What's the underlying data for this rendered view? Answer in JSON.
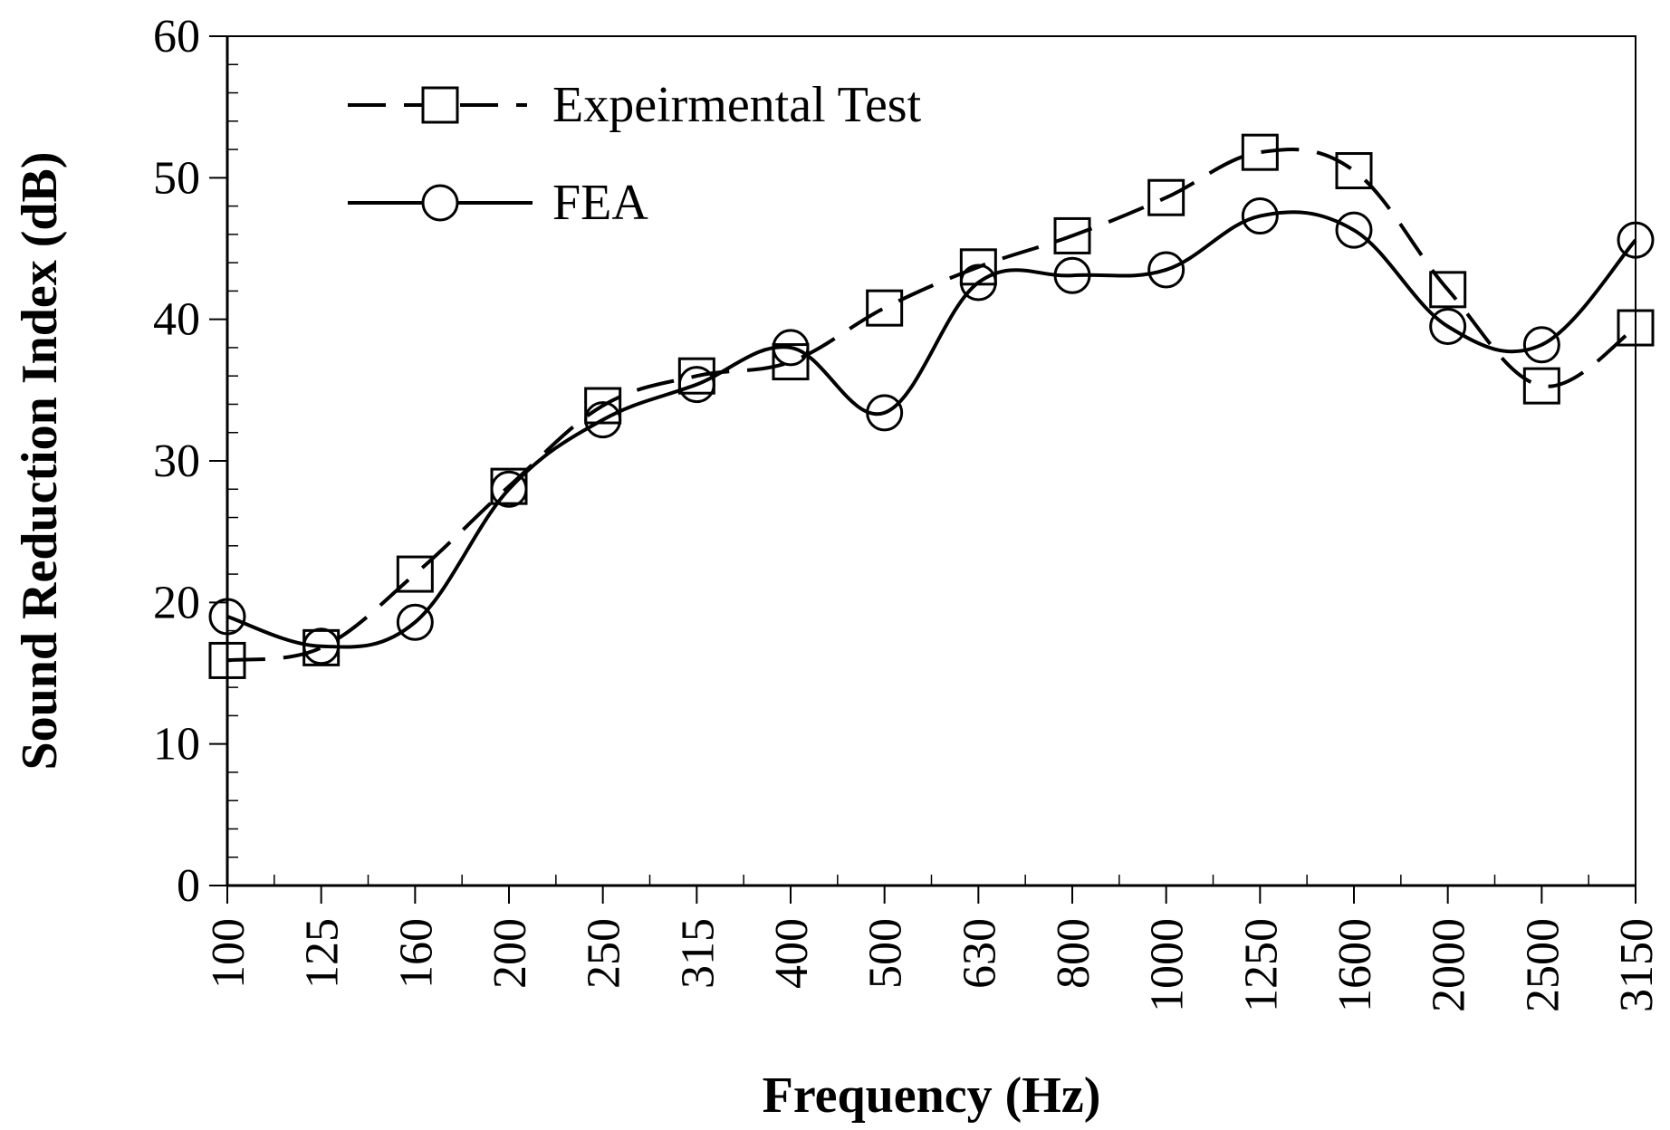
{
  "chart_data": {
    "type": "line",
    "title": "",
    "xlabel": "Frequency (Hz)",
    "ylabel": "Sound Reduction Index (dB)",
    "categories": [
      "100",
      "125",
      "160",
      "200",
      "250",
      "315",
      "400",
      "500",
      "630",
      "800",
      "1000",
      "1250",
      "1600",
      "2000",
      "2500",
      "3150"
    ],
    "ylim": [
      0,
      60
    ],
    "yticks": [
      0,
      10,
      20,
      30,
      40,
      50,
      60
    ],
    "ytick_labels": [
      "0",
      "10",
      "20",
      "30",
      "40",
      "50",
      "60"
    ],
    "grid": false,
    "legend_position": "top-left",
    "series": [
      {
        "name": "Expeirmental Test",
        "style": "dashed",
        "marker": "square",
        "color": "#000000",
        "values": [
          15.9,
          16.8,
          22.0,
          28.2,
          33.9,
          36.0,
          37.0,
          40.8,
          43.7,
          45.9,
          48.6,
          51.8,
          50.5,
          42.1,
          35.3,
          39.4
        ]
      },
      {
        "name": "FEA",
        "style": "solid",
        "marker": "circle",
        "color": "#000000",
        "values": [
          19.0,
          16.9,
          18.6,
          28.0,
          32.9,
          35.4,
          38.0,
          33.4,
          42.6,
          43.1,
          43.5,
          47.3,
          46.3,
          39.5,
          38.2,
          45.6
        ]
      }
    ]
  }
}
